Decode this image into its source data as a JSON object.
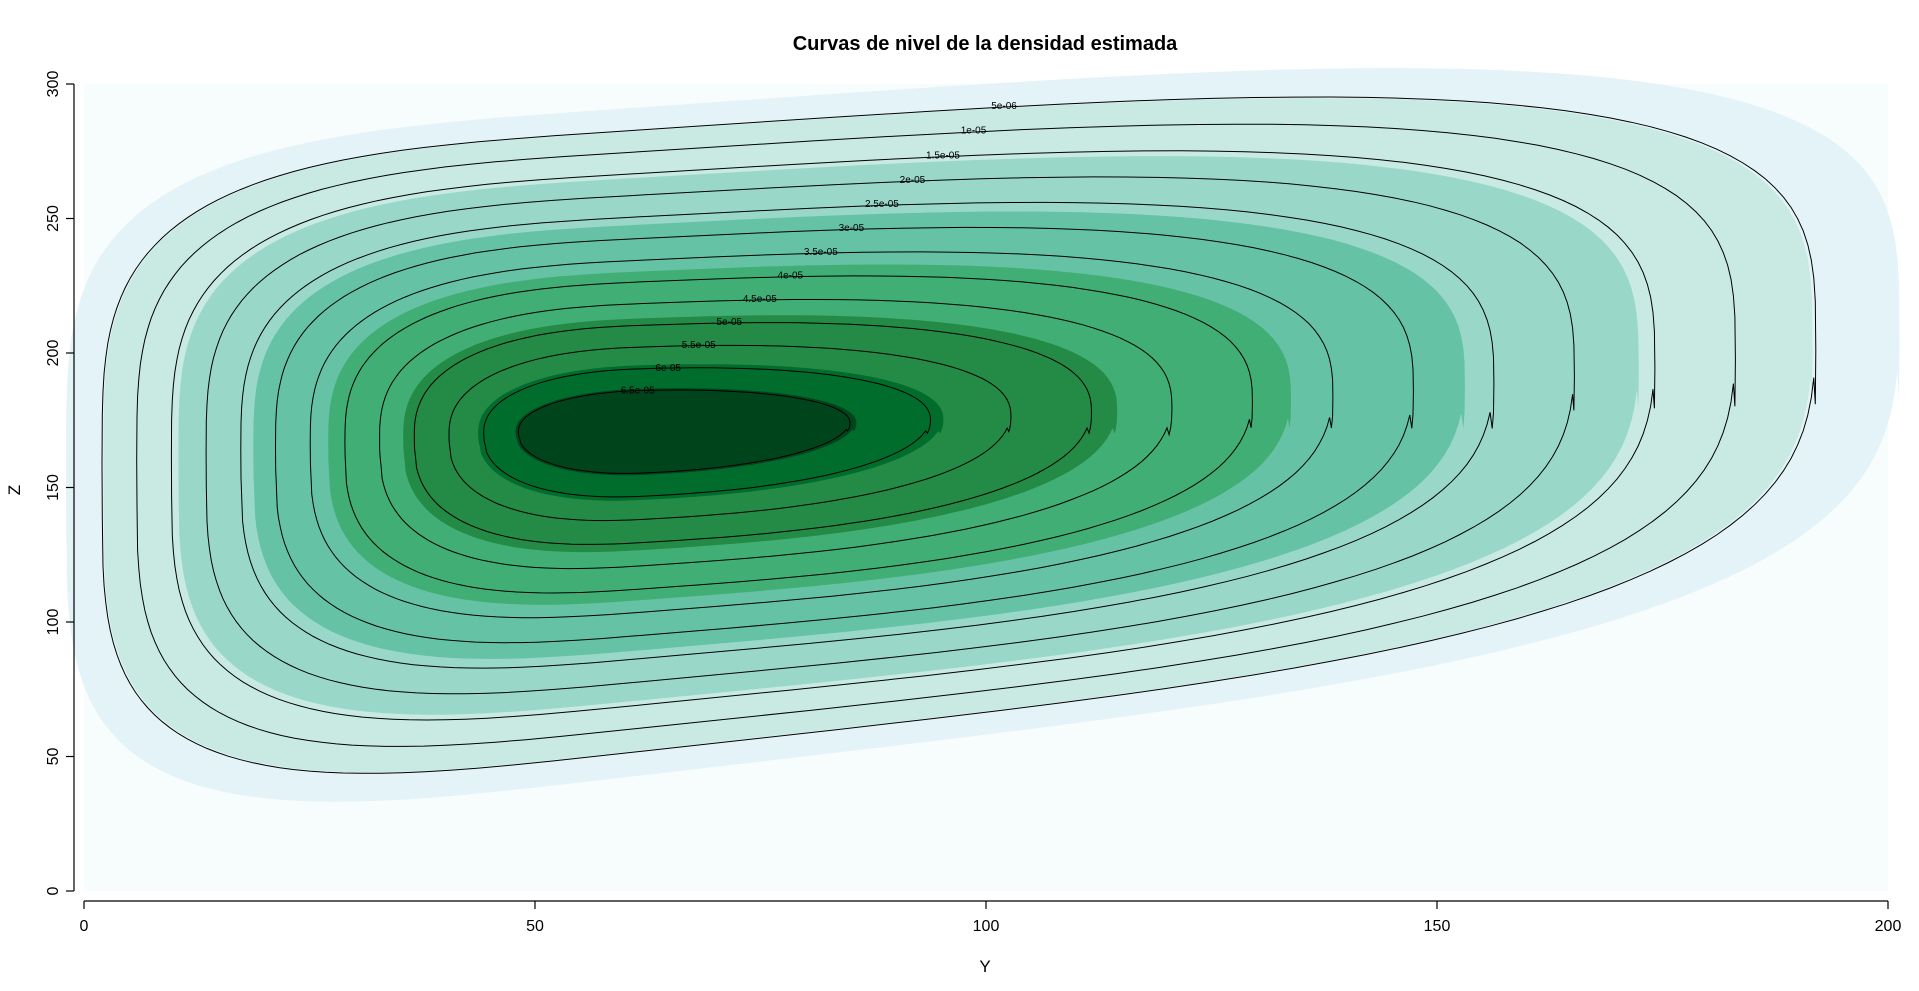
{
  "chart_data": {
    "type": "contour",
    "title": "Curvas de nivel de la densidad estimada",
    "xlabel": "Y",
    "ylabel": "Z",
    "xlim": [
      0,
      200
    ],
    "ylim": [
      0,
      300
    ],
    "x_ticks": [
      0,
      50,
      100,
      150,
      200
    ],
    "y_ticks": [
      0,
      50,
      100,
      150,
      200,
      250,
      300
    ],
    "grid": false,
    "legend": "none",
    "peak": {
      "x": 62,
      "y": 172
    },
    "levels": [
      {
        "label": "5e-06",
        "value": 5e-06,
        "fill": "#e3f3f7"
      },
      {
        "label": "1e-05",
        "value": 1e-05,
        "fill": "#c8eae2"
      },
      {
        "label": "1.5e-05",
        "value": 1.5e-05,
        "fill": "#c8eae2"
      },
      {
        "label": "2e-05",
        "value": 2e-05,
        "fill": "#99d8c9"
      },
      {
        "label": "2.5e-05",
        "value": 2.5e-05,
        "fill": "#99d8c9"
      },
      {
        "label": "3e-05",
        "value": 3e-05,
        "fill": "#66c2a4"
      },
      {
        "label": "3.5e-05",
        "value": 3.5e-05,
        "fill": "#66c2a4"
      },
      {
        "label": "4e-05",
        "value": 4e-05,
        "fill": "#41ae76"
      },
      {
        "label": "4.5e-05",
        "value": 4.5e-05,
        "fill": "#41ae76"
      },
      {
        "label": "5e-05",
        "value": 5e-05,
        "fill": "#238b45"
      },
      {
        "label": "5.5e-05",
        "value": 5.5e-05,
        "fill": "#238b45"
      },
      {
        "label": "6e-05",
        "value": 6e-05,
        "fill": "#006d2c"
      },
      {
        "label": "6.5e-05",
        "value": 6.5e-05,
        "fill": "#00441b"
      }
    ],
    "background_fill": "#f7fcfd"
  }
}
